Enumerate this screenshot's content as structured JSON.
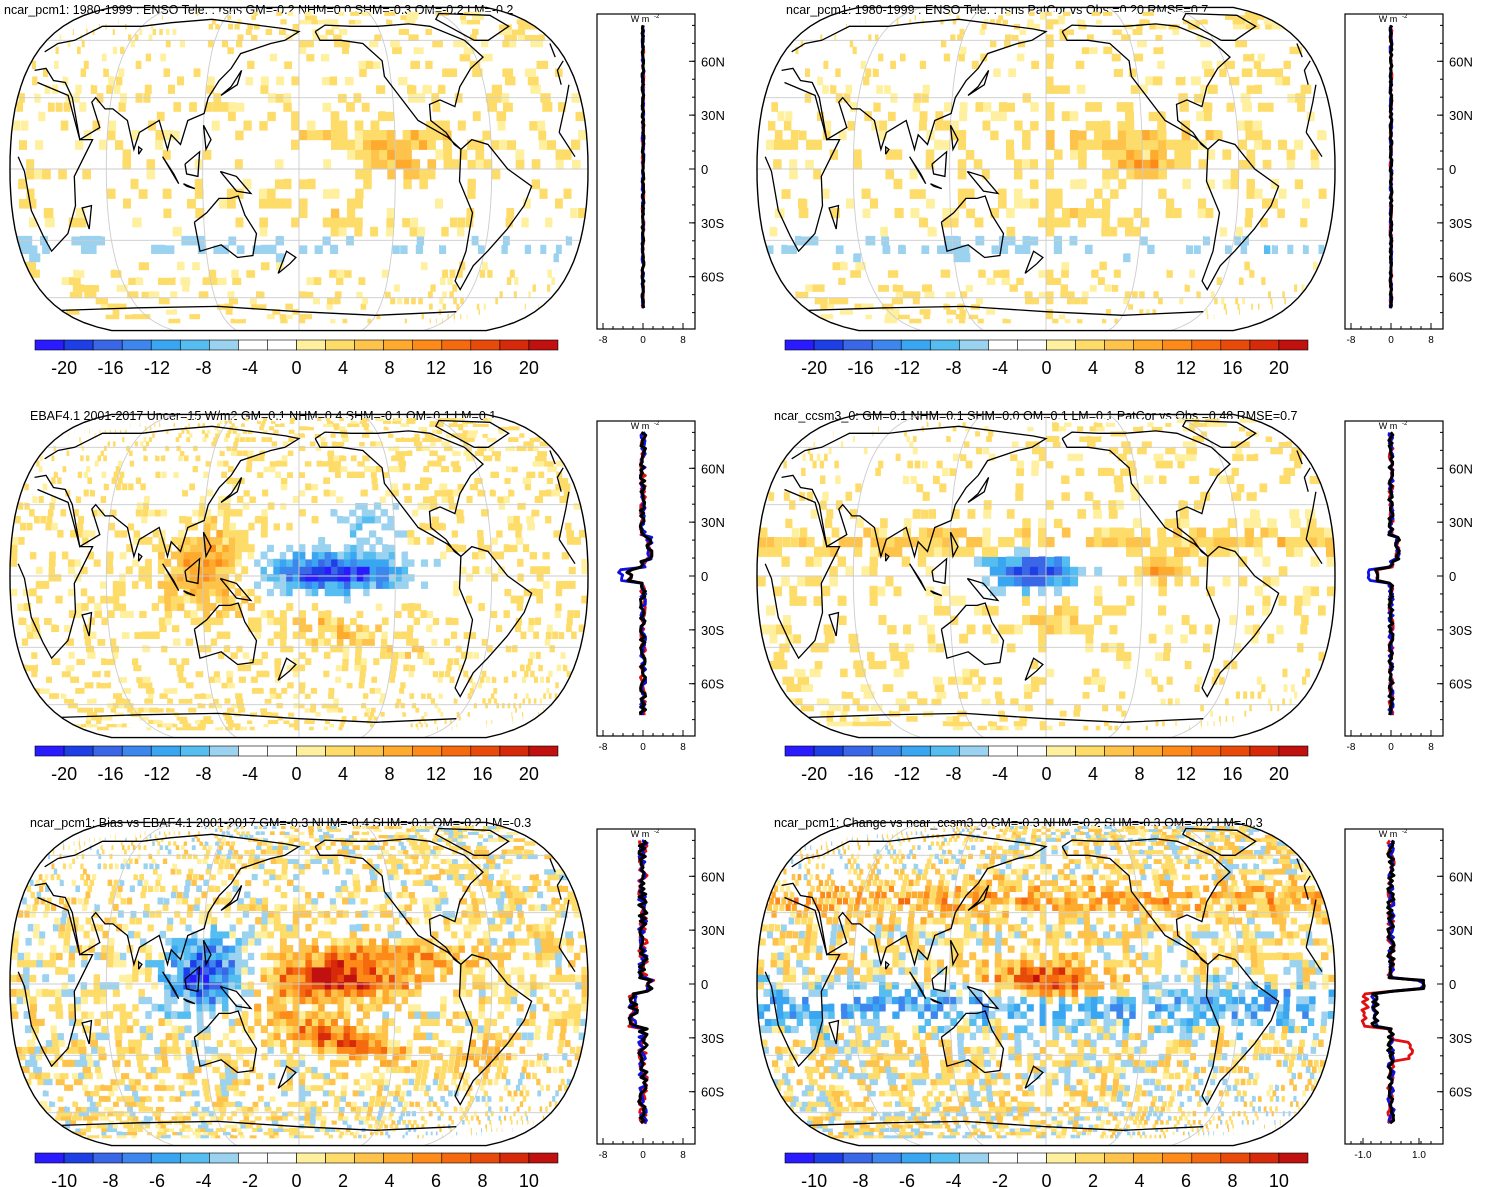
{
  "chart_data": [
    {
      "type": "heatmap",
      "title": "ncar_pcm1: 1980-1999 : ENSO Tele. : rsns GM=-0.2 NHM=0.0 SHM=-0.3 OM=-0.2 LM=-0.2",
      "colorbar_ticks": [
        "-20",
        "-16",
        "-12",
        "-8",
        "-4",
        "0",
        "4",
        "8",
        "12",
        "16",
        "20"
      ],
      "zonal_unit": "W m",
      "zonal_unit_sup": "-2",
      "zonal_xticks": [
        "-8",
        "0",
        "8"
      ],
      "zonal_yticks": [
        "60N",
        "30N",
        "0",
        "30S",
        "60S"
      ],
      "anomaly_scale": 0.35
    },
    {
      "type": "heatmap",
      "title": "ncar_pcm1: 1980-1999 : ENSO Tele. : rsns PatCor vs Obs =0.20 RMSE=0.7",
      "colorbar_ticks": [
        "-20",
        "-16",
        "-12",
        "-8",
        "-4",
        "0",
        "4",
        "8",
        "12",
        "16",
        "20"
      ],
      "zonal_unit": "W m",
      "zonal_unit_sup": "-2",
      "zonal_xticks": [
        "-8",
        "0",
        "8"
      ],
      "zonal_yticks": [
        "60N",
        "30N",
        "0",
        "30S",
        "60S"
      ],
      "anomaly_scale": 0.35
    },
    {
      "type": "heatmap",
      "title": "EBAF4.1 2001-2017 Uncer=15 W/m2 GM=0.1 NHM=0.4 SHM=-0.1 OM=0.1 LM=0.1",
      "colorbar_ticks": [
        "-20",
        "-16",
        "-12",
        "-8",
        "-4",
        "0",
        "4",
        "8",
        "12",
        "16",
        "20"
      ],
      "zonal_unit": "W m",
      "zonal_unit_sup": "-2",
      "zonal_xticks": [
        "-8",
        "0",
        "8"
      ],
      "zonal_yticks": [
        "60N",
        "30N",
        "0",
        "30S",
        "60S"
      ],
      "anomaly_scale": 1.0
    },
    {
      "type": "heatmap",
      "title": "ncar_ccsm3_0: GM=0.1 NHM=0.1 SHM=0.0 OM=0.1 LM=0.1 PatCor vs Obs =0.48 RMSE=0.7",
      "colorbar_ticks": [
        "-20",
        "-16",
        "-12",
        "-8",
        "-4",
        "0",
        "4",
        "8",
        "12",
        "16",
        "20"
      ],
      "zonal_unit": "W m",
      "zonal_unit_sup": "-2",
      "zonal_xticks": [
        "-8",
        "0",
        "8"
      ],
      "zonal_yticks": [
        "60N",
        "30N",
        "0",
        "30S",
        "60S"
      ],
      "anomaly_scale": 0.8
    },
    {
      "type": "heatmap",
      "title": "ncar_pcm1: Bias vs EBAF4.1 2001-2017 GM=-0.3 NHM=-0.4 SHM=-0.1 OM=-0.2 LM=-0.3",
      "colorbar_ticks": [
        "-10",
        "-8",
        "-6",
        "-4",
        "-2",
        "0",
        "2",
        "4",
        "6",
        "8",
        "10"
      ],
      "zonal_unit": "W m",
      "zonal_unit_sup": "-2",
      "zonal_xticks": [
        "-8",
        "0",
        "8"
      ],
      "zonal_yticks": [
        "60N",
        "30N",
        "0",
        "30S",
        "60S"
      ],
      "anomaly_scale": 1.6
    },
    {
      "type": "heatmap",
      "title": "ncar_pcm1: Change vs ncar_ccsm3_0 GM=-0.3 NHM=-0.2 SHM=-0.3 OM=-0.2 LM=-0.3",
      "colorbar_ticks": [
        "-10",
        "-8",
        "-6",
        "-4",
        "-2",
        "0",
        "2",
        "4",
        "6",
        "8",
        "10"
      ],
      "zonal_unit": "W m",
      "zonal_unit_sup": "-2",
      "zonal_xticks": [
        "-1.0",
        "1.0"
      ],
      "zonal_yticks": [
        "60N",
        "30N",
        "0",
        "30S",
        "60S"
      ],
      "anomaly_scale": 1.2
    }
  ],
  "colors": {
    "colorbar": [
      "#2a1aff",
      "#1f3fe6",
      "#3a66e8",
      "#3d86ee",
      "#3aa6f2",
      "#56bdf0",
      "#9bd2ef",
      "#ffffff",
      "#ffffff",
      "#fff0a0",
      "#fedc6a",
      "#fec34a",
      "#feaa2f",
      "#fd8a19",
      "#f56a0f",
      "#e84a0a",
      "#d62a0a",
      "#c01010"
    ],
    "zonal_series": [
      "#e01010",
      "#1010e0",
      "#000000"
    ],
    "graticule": "#cccccc",
    "coast": "#000000"
  }
}
